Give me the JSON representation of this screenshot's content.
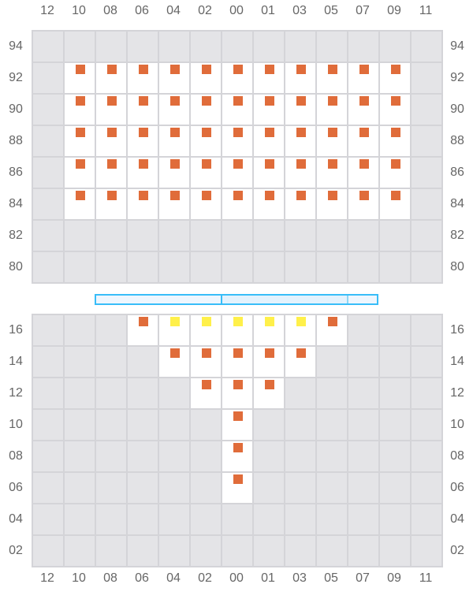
{
  "columns": [
    "12",
    "10",
    "08",
    "06",
    "04",
    "02",
    "00",
    "01",
    "03",
    "05",
    "07",
    "09",
    "11"
  ],
  "colors": {
    "seat_orange": "#e06c3a",
    "seat_yellow": "#fff04a",
    "blocked": "#e4e4e7",
    "open": "#ffffff",
    "bar_border": "#38bdf8"
  },
  "top_section": {
    "rows": [
      {
        "label": "94",
        "cells": "-------------"
      },
      {
        "label": "92",
        "cells": "-OOOOOOOOOOO-"
      },
      {
        "label": "90",
        "cells": "-OOOOOOOOOOO-"
      },
      {
        "label": "88",
        "cells": "-OOOOOOOOOOO-"
      },
      {
        "label": "86",
        "cells": "-OOOOOOOOOOO-"
      },
      {
        "label": "84",
        "cells": "-OOOOOOOOOOO-"
      },
      {
        "label": "82",
        "cells": "-------------"
      },
      {
        "label": "80",
        "cells": "-------------"
      }
    ]
  },
  "divider_bar": {
    "segments": [
      {
        "color": "#eef6fe"
      },
      {
        "color": "#e3f2fd"
      },
      {
        "color": "#eef6fe"
      }
    ]
  },
  "bottom_section": {
    "rows": [
      {
        "label": "16",
        "cells": "---OYYYYYO---"
      },
      {
        "label": "14",
        "cells": "----OOOOO----"
      },
      {
        "label": "12",
        "cells": "-----OOO-----"
      },
      {
        "label": "10",
        "cells": "------O------"
      },
      {
        "label": "08",
        "cells": "------O------"
      },
      {
        "label": "06",
        "cells": "------O------"
      },
      {
        "label": "04",
        "cells": "-------------"
      },
      {
        "label": "02",
        "cells": "-------------"
      }
    ]
  },
  "legend_note": {
    "cell_codes": {
      "-": "blocked",
      "O": "seat_orange",
      "Y": "seat_yellow",
      "W": "open_empty"
    }
  }
}
